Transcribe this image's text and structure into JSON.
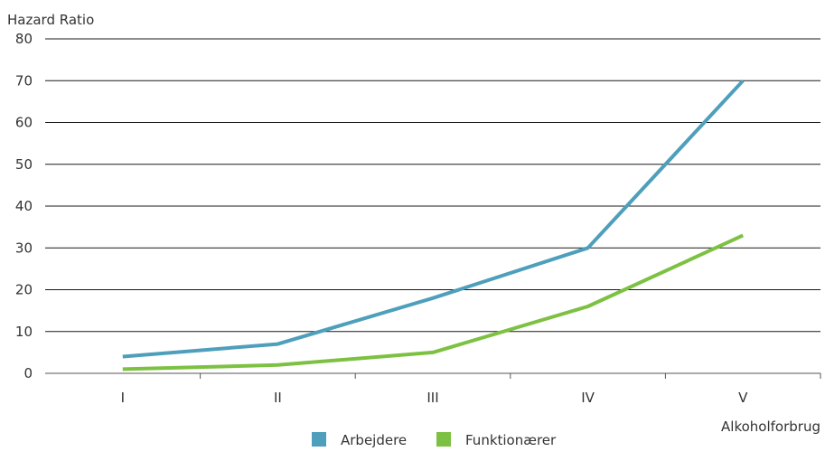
{
  "chart_data": {
    "type": "line",
    "title": "",
    "ylabel": "Hazard Ratio",
    "xlabel": "Alkoholforbrug",
    "categories": [
      "I",
      "II",
      "III",
      "IV",
      "V"
    ],
    "ylim": [
      0,
      80
    ],
    "yticks": [
      0,
      10,
      20,
      30,
      40,
      50,
      60,
      70,
      80
    ],
    "grid": true,
    "legend_position": "bottom",
    "series": [
      {
        "name": "Arbejdere",
        "color": "#4e9fbb",
        "values": [
          4,
          7,
          18,
          30,
          70
        ]
      },
      {
        "name": "Funktionærer",
        "color": "#7dc142",
        "values": [
          1,
          2,
          5,
          16,
          33
        ]
      }
    ]
  }
}
